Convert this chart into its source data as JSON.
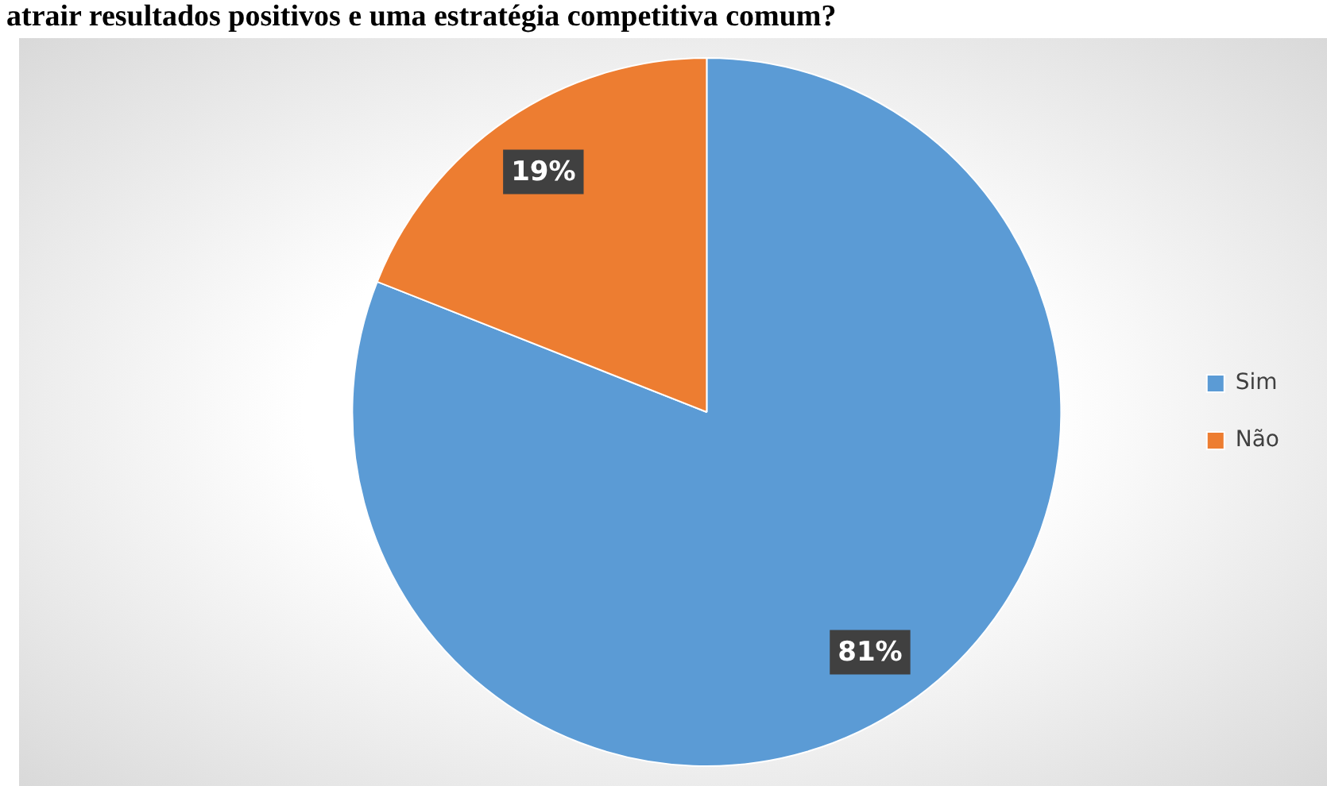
{
  "chart_data": {
    "type": "pie",
    "title": "atrair resultados positivos e uma estratégia competitiva comum?",
    "categories": [
      "Sim",
      "Não"
    ],
    "values": [
      81,
      19
    ],
    "colors": [
      "#5b9bd5",
      "#ed7d31"
    ],
    "value_labels": [
      "81%",
      "19%"
    ],
    "legend": "right"
  }
}
